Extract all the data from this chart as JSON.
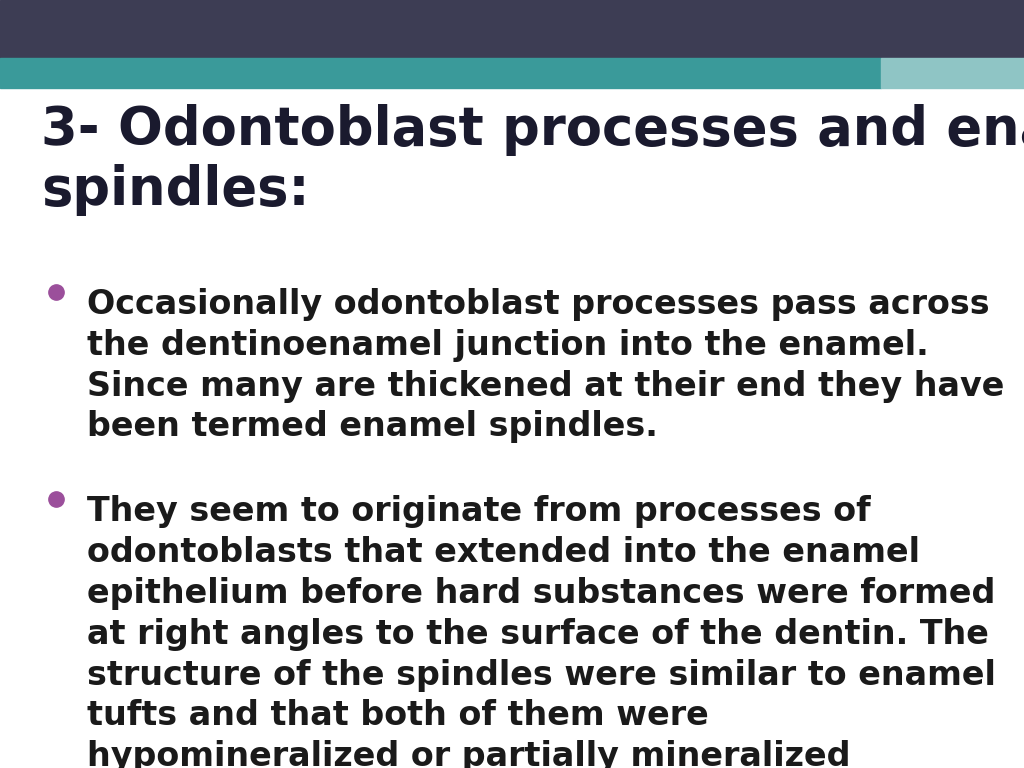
{
  "title_prefix": "3- ",
  "title_bold": "Odontoblast processes and enamel\nspindles:",
  "background_color": "#ffffff",
  "header_bar_dark_color": "#3d3d54",
  "header_bar_teal_color": "#3a9a9a",
  "header_bar_teal_light_color": "#8fc5c5",
  "title_color": "#1a1a2e",
  "bullet_color": "#9b4f9b",
  "text_color": "#1a1a1a",
  "bullet_points": [
    "Occasionally odontoblast processes pass across\nthe dentinoenamel junction into the enamel.\nSince many are thickened at their end they have\nbeen termed enamel spindles.",
    "They seem to originate from processes of\nodontoblasts that extended into the enamel\nepithelium before hard substances were formed\nat right angles to the surface of the dentin. The\nstructure of the spindles were similar to enamel\ntufts and that both of them were\nhypomineralized or partially mineralized\nstructures"
  ],
  "font_size_title": 38,
  "font_size_body": 24,
  "figsize": [
    10.24,
    7.68
  ],
  "dpi": 100
}
